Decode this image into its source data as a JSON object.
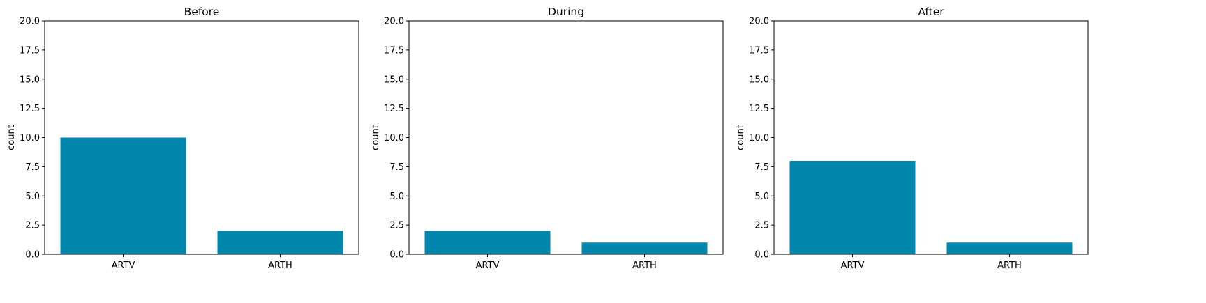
{
  "chart_data": [
    {
      "type": "bar",
      "title": "Before",
      "xlabel": "",
      "ylabel": "count",
      "categories": [
        "ARTV",
        "ARTH"
      ],
      "values": [
        10,
        2
      ],
      "ylim": [
        0,
        20
      ],
      "yticks": [
        "0.0",
        "2.5",
        "5.0",
        "7.5",
        "10.0",
        "12.5",
        "15.0",
        "17.5",
        "20.0"
      ],
      "grid": false,
      "bar_color": "#0086AD"
    },
    {
      "type": "bar",
      "title": "During",
      "xlabel": "",
      "ylabel": "count",
      "categories": [
        "ARTV",
        "ARTH"
      ],
      "values": [
        2,
        1
      ],
      "ylim": [
        0,
        20
      ],
      "yticks": [
        "0.0",
        "2.5",
        "5.0",
        "7.5",
        "10.0",
        "12.5",
        "15.0",
        "17.5",
        "20.0"
      ],
      "grid": false,
      "bar_color": "#0086AD"
    },
    {
      "type": "bar",
      "title": "After",
      "xlabel": "",
      "ylabel": "count",
      "categories": [
        "ARTV",
        "ARTH"
      ],
      "values": [
        8,
        1
      ],
      "ylim": [
        0,
        20
      ],
      "yticks": [
        "0.0",
        "2.5",
        "5.0",
        "7.5",
        "10.0",
        "12.5",
        "15.0",
        "17.5",
        "20.0"
      ],
      "grid": false,
      "bar_color": "#0086AD"
    }
  ]
}
